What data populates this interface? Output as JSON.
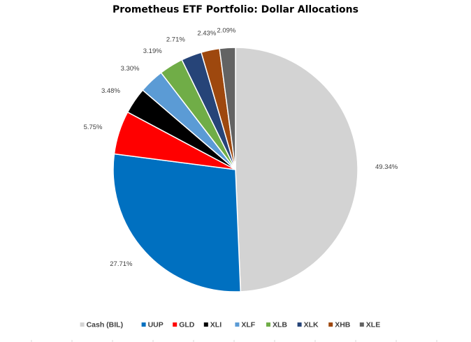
{
  "chart_data": {
    "type": "pie",
    "title": "Prometheus ETF Portfolio: Dollar Allocations",
    "legend_position": "bottom",
    "start_angle_deg": 0,
    "direction": "clockwise",
    "slices": [
      {
        "name": "Cash (BIL)",
        "value": 49.34,
        "label": "49.34%",
        "color": "#D3D3D3"
      },
      {
        "name": "UUP",
        "value": 27.71,
        "label": "27.71%",
        "color": "#0070C0"
      },
      {
        "name": "GLD",
        "value": 5.75,
        "label": "5.75%",
        "color": "#FF0000"
      },
      {
        "name": "XLI",
        "value": 3.48,
        "label": "3.48%",
        "color": "#000000"
      },
      {
        "name": "XLF",
        "value": 3.3,
        "label": "3.30%",
        "color": "#5B9BD5"
      },
      {
        "name": "XLB",
        "value": 3.19,
        "label": "3.19%",
        "color": "#70AD47"
      },
      {
        "name": "XLK",
        "value": 2.71,
        "label": "2.71%",
        "color": "#264478"
      },
      {
        "name": "XHB",
        "value": 2.43,
        "label": "2.43%",
        "color": "#9E480E"
      },
      {
        "name": "XLE",
        "value": 2.09,
        "label": "2.09%",
        "color": "#636363"
      }
    ]
  }
}
